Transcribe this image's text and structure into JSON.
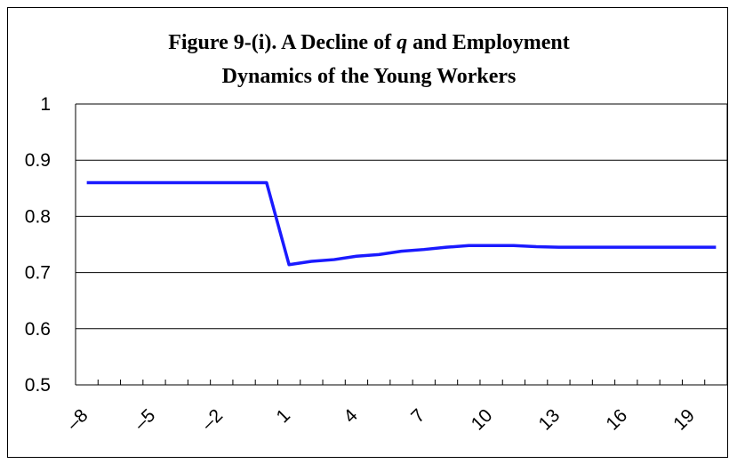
{
  "chart_data": {
    "type": "line",
    "title": [
      "Figure 9-(i). A Decline of",
      "q",
      "and Employment",
      "Dynamics of the Young Workers"
    ],
    "categories": [
      "–8",
      null,
      null,
      "–5",
      null,
      null,
      "–2",
      null,
      null,
      "1",
      null,
      null,
      "4",
      null,
      null,
      "7",
      null,
      null,
      "10",
      null,
      null,
      "13",
      null,
      null,
      "16",
      null,
      null,
      "19",
      null
    ],
    "series": [
      {
        "color": "#1a1aff",
        "values": [
          0.86,
          0.86,
          0.86,
          0.86,
          0.86,
          0.86,
          0.86,
          0.86,
          0.86,
          0.714,
          0.72,
          0.723,
          0.729,
          0.732,
          0.738,
          0.741,
          0.745,
          0.748,
          0.748,
          0.748,
          0.746,
          0.745,
          0.745,
          0.745,
          0.745,
          0.745,
          0.745,
          0.745,
          0.745
        ]
      }
    ],
    "ylim": [
      0.5,
      1
    ],
    "yticks": [
      0.5,
      0.6,
      0.7,
      0.8,
      0.9,
      1
    ],
    "grid": true
  }
}
